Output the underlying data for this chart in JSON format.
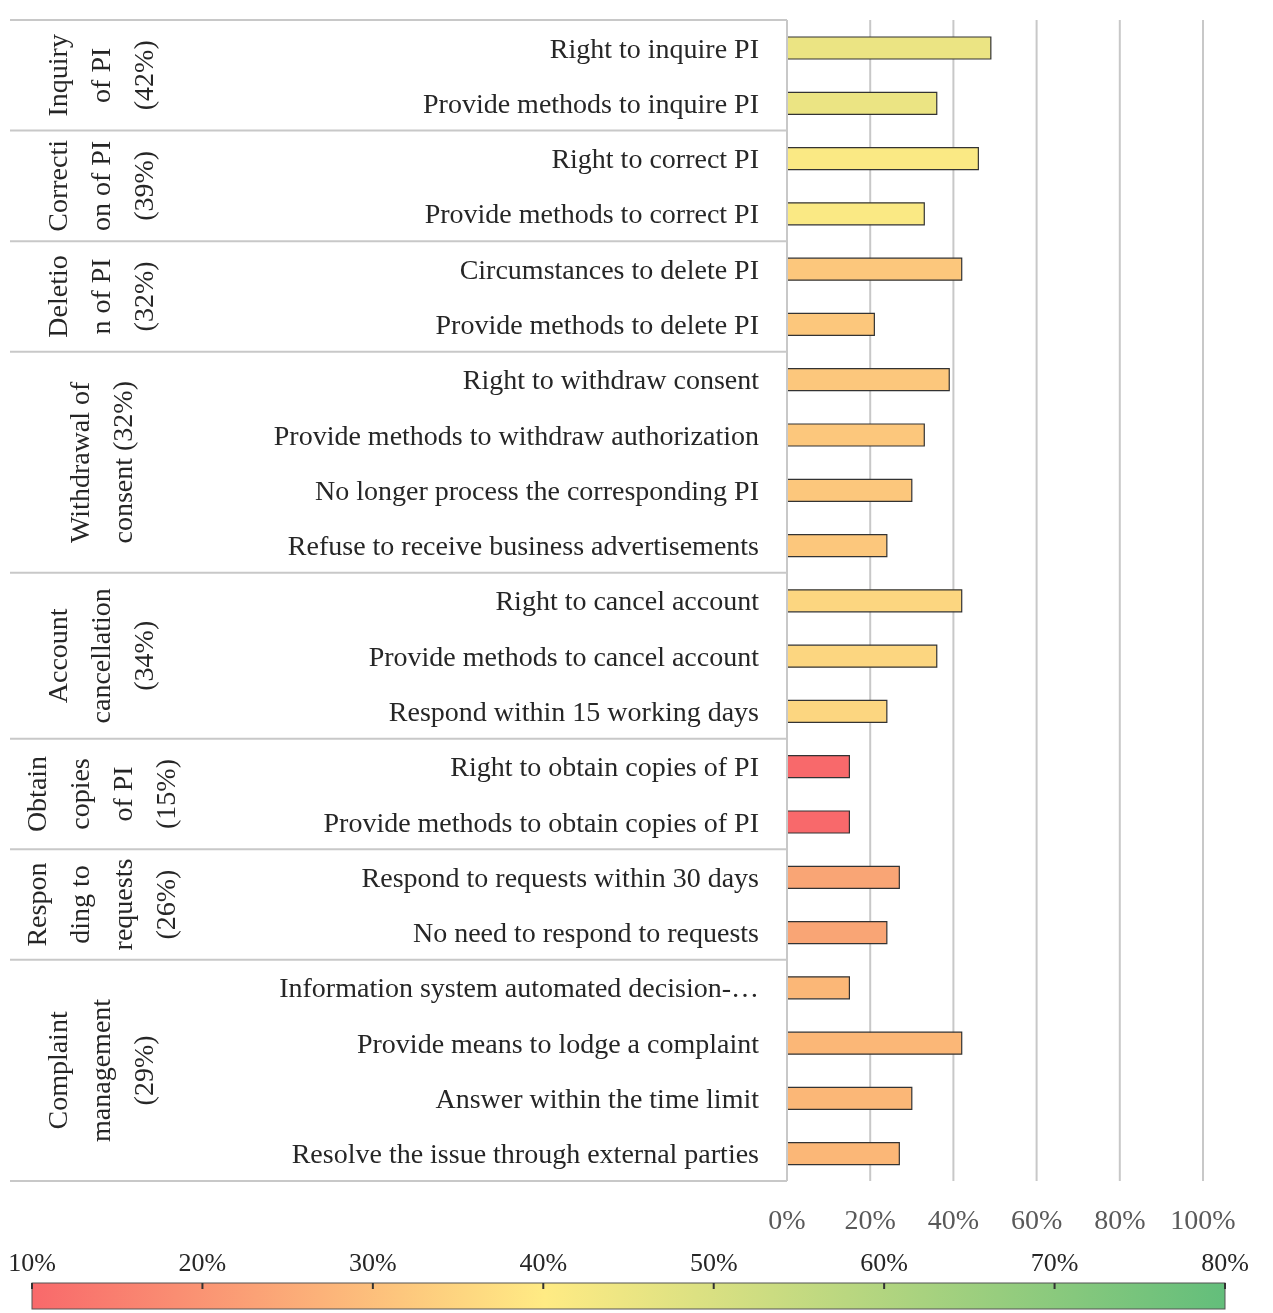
{
  "chart_data": {
    "type": "bar",
    "orientation": "horizontal",
    "categories": [
      "Right to inquire PI",
      "Provide methods to inquire PI",
      "Right to correct PI",
      "Provide methods to correct PI",
      "Circumstances to delete PI",
      "Provide methods to delete PI",
      "Right to withdraw consent",
      "Provide methods to withdraw authorization",
      "No longer process the corresponding PI",
      "Refuse to receive business advertisements",
      "Right to cancel account",
      "Provide methods to cancel account",
      "Respond within 15 working days",
      "Right to obtain copies of PI",
      "Provide methods to obtain copies of PI",
      "Respond to requests within 30 days",
      "No need to respond to requests",
      "Information system automated decision-…",
      "Provide means to lodge a complaint",
      "Answer within the time limit",
      "Resolve the issue through external parties"
    ],
    "values": [
      49,
      36,
      46,
      33,
      42,
      21,
      39,
      33,
      30,
      24,
      42,
      36,
      24,
      15,
      15,
      27,
      24,
      15,
      42,
      30,
      27
    ],
    "colors": [
      "#ebe483",
      "#ebe483",
      "#fae984",
      "#fae984",
      "#fcc77c",
      "#fcc77c",
      "#fcc77c",
      "#fcc77c",
      "#fcc77c",
      "#fcc77c",
      "#fcd680",
      "#fcd680",
      "#fcd680",
      "#f8696b",
      "#f8696b",
      "#f9a575",
      "#f9a575",
      "#fbb777",
      "#fbb777",
      "#fbb777",
      "#fbb777"
    ],
    "xlim": [
      0,
      100
    ],
    "xticks": [
      {
        "value": 0,
        "label": "0%"
      },
      {
        "value": 20,
        "label": "20%"
      },
      {
        "value": 40,
        "label": "40%"
      },
      {
        "value": 60,
        "label": "60%"
      },
      {
        "value": 80,
        "label": "80%"
      },
      {
        "value": 100,
        "label": "100%"
      }
    ],
    "grid": "x",
    "clim": [
      10,
      80
    ],
    "cticks": [
      {
        "value": 10,
        "label": "10%"
      },
      {
        "value": 20,
        "label": "20%"
      },
      {
        "value": 30,
        "label": "30%"
      },
      {
        "value": 40,
        "label": "40%"
      },
      {
        "value": 50,
        "label": "50%"
      },
      {
        "value": 60,
        "label": "60%"
      },
      {
        "value": 70,
        "label": "70%"
      },
      {
        "value": 80,
        "label": "80%"
      }
    ],
    "annotations": [
      "Inquiry\nof PI\n(42%)",
      "Correcti\non of PI\n(39%)",
      "Deletio\nn of PI\n(32%)",
      "Withdrawal of\nconsent (32%)",
      "Account\ncancellation\n(34%)",
      "Obtain\ncopies\nof PI\n(15%)",
      "Respon\nding to\nrequests\n(26%)",
      "Complaint\nmanagement\n(29%)"
    ]
  }
}
